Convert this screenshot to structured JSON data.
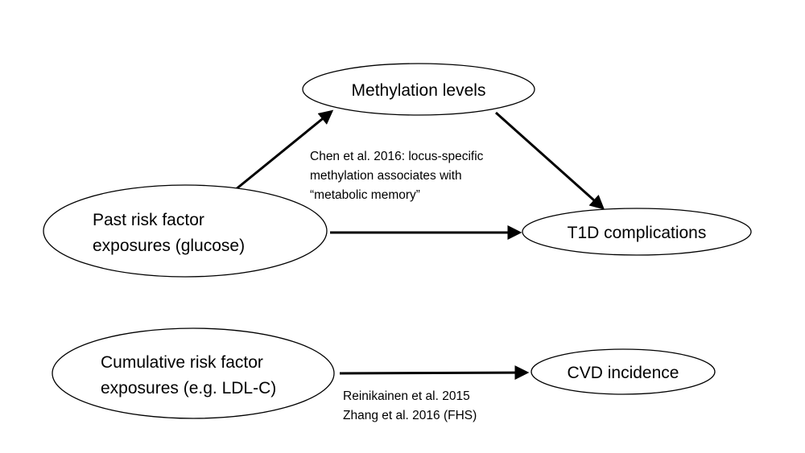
{
  "nodes": {
    "methylation": {
      "label": "Methylation levels"
    },
    "past_exposures": {
      "lines": [
        "Past risk factor",
        "exposures (glucose)"
      ]
    },
    "t1d": {
      "label": "T1D complications"
    },
    "cumulative_exposures": {
      "lines": [
        "Cumulative risk factor",
        "exposures (e.g. LDL-C)"
      ]
    },
    "cvd": {
      "label": "CVD incidence"
    }
  },
  "annotations": {
    "chen": [
      "Chen et al. 2016: locus-specific",
      "methylation associates with",
      "“metabolic memory”"
    ],
    "refs": [
      "Reinikainen et al. 2015",
      "Zhang et al. 2016 (FHS)"
    ]
  },
  "colors": {
    "stroke": "#000000",
    "background": "#ffffff"
  }
}
